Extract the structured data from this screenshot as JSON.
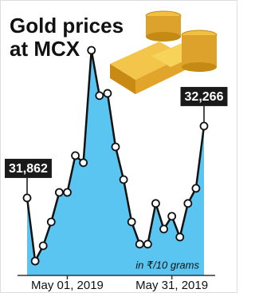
{
  "chart_data": {
    "type": "area",
    "title": [
      "Gold prices",
      "at MCX"
    ],
    "annotation": "in ₹/10 grams",
    "categories": [
      null,
      null,
      null,
      null,
      null,
      "May 01, 2019",
      null,
      null,
      null,
      null,
      null,
      null,
      null,
      null,
      null,
      null,
      null,
      null,
      "May 31, 2019",
      null,
      null,
      null,
      null
    ],
    "values": [
      31862,
      31507,
      31593,
      31727,
      31893,
      31893,
      32100,
      32060,
      32692,
      32437,
      32450,
      32149,
      31965,
      31727,
      31602,
      31602,
      31831,
      31687,
      31759,
      31642,
      31831,
      31916,
      32266
    ],
    "value_labels": [
      "31,862",
      null,
      null,
      null,
      null,
      null,
      null,
      null,
      null,
      null,
      null,
      null,
      null,
      null,
      null,
      null,
      null,
      null,
      null,
      null,
      null,
      null,
      "32,266"
    ],
    "color": "#5bc5f2"
  }
}
